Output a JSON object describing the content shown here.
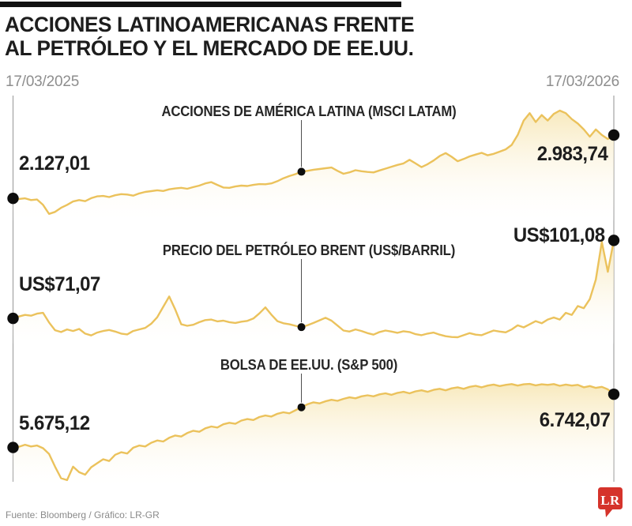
{
  "header": {
    "title_line1": "ACCIONES LATINOAMERICANAS FRENTE",
    "title_line2": "AL PETRÓLEO Y EL MERCADO DE EE.UU."
  },
  "timeline": {
    "start_date": "17/03/2025",
    "end_date": "17/03/2026"
  },
  "footer": {
    "source": "Fuente: Bloomberg / Gráfico: LR-GR",
    "logo_text": "LR"
  },
  "colors": {
    "line": "#EBC25C",
    "fill_top": "#F7E7B6",
    "fill_bottom": "#FFFFFF",
    "dot": "#0d0d0d",
    "guide": "#a3a3a3",
    "pointer": "#4a4a4a",
    "accent_red": "#D5332B",
    "logo_text_color": "#ffffff"
  },
  "chart_data": [
    {
      "type": "line",
      "name": "msci-latam",
      "label": "ACCIONES DE AMÉRICA LATINA (MSCI LATAM)",
      "start_label": "2.127,01",
      "end_label": "2.983,74",
      "start_value": 2127.01,
      "end_value": 2983.74,
      "x_range": [
        "17/03/2025",
        "17/03/2026"
      ],
      "ylim": [
        1905,
        3315
      ],
      "marker_index": 48,
      "grid": false,
      "values": [
        2127.01,
        2120,
        2128,
        2105,
        2112,
        2040,
        1918,
        1945,
        2000,
        2040,
        2085,
        2105,
        2090,
        2130,
        2155,
        2160,
        2145,
        2170,
        2185,
        2180,
        2165,
        2195,
        2215,
        2225,
        2237,
        2228,
        2250,
        2262,
        2270,
        2258,
        2280,
        2300,
        2330,
        2347,
        2310,
        2275,
        2270,
        2288,
        2300,
        2295,
        2310,
        2320,
        2318,
        2330,
        2360,
        2400,
        2430,
        2455,
        2488,
        2500,
        2515,
        2525,
        2535,
        2545,
        2500,
        2460,
        2480,
        2508,
        2495,
        2485,
        2479,
        2505,
        2530,
        2555,
        2580,
        2600,
        2650,
        2600,
        2550,
        2590,
        2640,
        2700,
        2740,
        2690,
        2630,
        2660,
        2695,
        2720,
        2743,
        2710,
        2730,
        2760,
        2790,
        2850,
        2985,
        3180,
        3280,
        3160,
        3255,
        3180,
        3270,
        3315,
        3280,
        3200,
        3140,
        3060,
        2963,
        3060,
        2985,
        2930,
        2983.74
      ]
    },
    {
      "type": "line",
      "name": "brent",
      "label": "PRECIO DEL PETRÓLEO BRENT (US$/BARRIL)",
      "start_label": "US$71,07",
      "end_label": "US$101,08",
      "start_value": 71.07,
      "end_value": 101.08,
      "x_range": [
        "17/03/2025",
        "17/03/2026"
      ],
      "ylim": [
        63.5,
        101.5
      ],
      "marker_index": 48,
      "grid": false,
      "values": [
        71.07,
        71.8,
        72.4,
        72.1,
        72.9,
        73.2,
        69.5,
        66.5,
        65.8,
        66.8,
        66.2,
        67.0,
        65.2,
        64.5,
        65.6,
        66.2,
        66.6,
        66.0,
        65.2,
        64.9,
        66.2,
        66.8,
        67.4,
        69.0,
        71.5,
        75.5,
        79.5,
        74.5,
        68.8,
        68.2,
        68.6,
        69.6,
        70.4,
        70.6,
        69.9,
        70.2,
        69.6,
        69.3,
        69.8,
        70.1,
        71.0,
        73.0,
        75.3,
        72.5,
        70.0,
        69.2,
        68.8,
        68.2,
        67.7,
        68.4,
        69.3,
        70.3,
        71.3,
        70.2,
        68.3,
        66.4,
        66.0,
        66.8,
        66.2,
        65.4,
        64.8,
        65.8,
        66.4,
        66.0,
        65.5,
        66.1,
        65.8,
        65.0,
        64.6,
        65.2,
        65.6,
        64.8,
        64.2,
        63.9,
        63.8,
        64.6,
        65.4,
        64.8,
        64.6,
        65.5,
        66.4,
        66.0,
        65.7,
        66.8,
        68.4,
        67.6,
        68.8,
        70.0,
        69.2,
        70.6,
        71.4,
        70.6,
        73.2,
        72.4,
        75.8,
        75.0,
        78.5,
        86.0,
        100.5,
        89.0,
        101.08
      ]
    },
    {
      "type": "line",
      "name": "sp500",
      "label": "BOLSA DE EE.UU. (S&P 500)",
      "start_label": "5.675,12",
      "end_label": "6.742,07",
      "start_value": 5675.12,
      "end_value": 6742.07,
      "x_range": [
        "17/03/2025",
        "17/03/2026"
      ],
      "ylim": [
        5020,
        6950
      ],
      "marker_index": 48,
      "grid": false,
      "values": [
        5675.12,
        5690,
        5730,
        5695,
        5715,
        5660,
        5545,
        5290,
        5060,
        5022,
        5290,
        5180,
        5130,
        5280,
        5360,
        5440,
        5405,
        5530,
        5580,
        5555,
        5670,
        5715,
        5695,
        5770,
        5815,
        5795,
        5870,
        5915,
        5895,
        5965,
        6010,
        5990,
        6060,
        6095,
        6075,
        6140,
        6170,
        6150,
        6215,
        6245,
        6225,
        6285,
        6315,
        6295,
        6350,
        6380,
        6360,
        6420,
        6480,
        6540,
        6580,
        6560,
        6600,
        6630,
        6610,
        6650,
        6680,
        6660,
        6700,
        6720,
        6700,
        6740,
        6760,
        6730,
        6770,
        6790,
        6760,
        6800,
        6820,
        6790,
        6830,
        6850,
        6820,
        6860,
        6880,
        6850,
        6890,
        6910,
        6880,
        6915,
        6935,
        6905,
        6930,
        6945,
        6915,
        6940,
        6948,
        6920,
        6940,
        6930,
        6945,
        6910,
        6935,
        6915,
        6930,
        6880,
        6905,
        6870,
        6890,
        6840,
        6742.07
      ]
    }
  ]
}
